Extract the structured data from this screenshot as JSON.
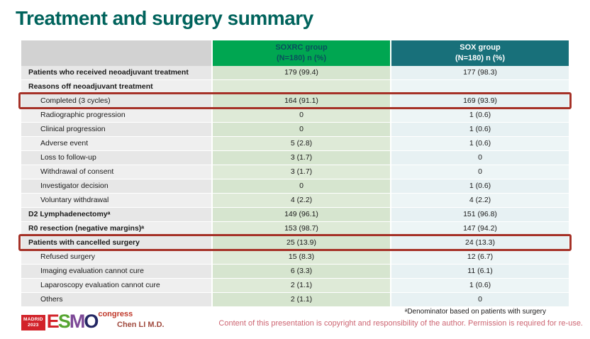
{
  "slide": {
    "title": "Treatment and surgery summary"
  },
  "table": {
    "header": {
      "soxrc": {
        "line1": "SOXRC group",
        "line2": "(N=180)  n (%)"
      },
      "sox": {
        "line1": "SOX group",
        "line2": "(N=180)  n (%)"
      }
    },
    "rows": [
      {
        "label": "Patients who received neoadjuvant treatment",
        "soxrc": "179 (99.4)",
        "sox": "177 (98.3)",
        "bold": true,
        "indent": false,
        "highlight": false
      },
      {
        "label": "Reasons off neoadjuvant treatment",
        "soxrc": "",
        "sox": "",
        "bold": true,
        "indent": false,
        "highlight": false
      },
      {
        "label": "Completed (3 cycles)",
        "soxrc": "164 (91.1)",
        "sox": "169 (93.9)",
        "bold": false,
        "indent": true,
        "highlight": true
      },
      {
        "label": "Radiographic progression",
        "soxrc": "0",
        "sox": "1 (0.6)",
        "bold": false,
        "indent": true,
        "highlight": false
      },
      {
        "label": "Clinical progression",
        "soxrc": "0",
        "sox": "1 (0.6)",
        "bold": false,
        "indent": true,
        "highlight": false
      },
      {
        "label": "Adverse event",
        "soxrc": "5 (2.8)",
        "sox": "1 (0.6)",
        "bold": false,
        "indent": true,
        "highlight": false
      },
      {
        "label": "Loss to follow-up",
        "soxrc": "3 (1.7)",
        "sox": "0",
        "bold": false,
        "indent": true,
        "highlight": false
      },
      {
        "label": "Withdrawal of consent",
        "soxrc": "3 (1.7)",
        "sox": "0",
        "bold": false,
        "indent": true,
        "highlight": false
      },
      {
        "label": "Investigator decision",
        "soxrc": "0",
        "sox": "1 (0.6)",
        "bold": false,
        "indent": true,
        "highlight": false
      },
      {
        "label": "Voluntary withdrawal",
        "soxrc": "4 (2.2)",
        "sox": "4 (2.2)",
        "bold": false,
        "indent": true,
        "highlight": false
      },
      {
        "label": "D2 Lymphadenectomyᵃ",
        "soxrc": "149 (96.1)",
        "sox": "151 (96.8)",
        "bold": true,
        "indent": false,
        "highlight": false
      },
      {
        "label": "R0 resection (negative margins)ᵃ",
        "soxrc": "153 (98.7)",
        "sox": "147 (94.2)",
        "bold": true,
        "indent": false,
        "highlight": false
      },
      {
        "label": "Patients with cancelled surgery",
        "soxrc": "25 (13.9)",
        "sox": "24 (13.3)",
        "bold": true,
        "indent": false,
        "highlight": true
      },
      {
        "label": "Refused surgery",
        "soxrc": "15 (8.3)",
        "sox": "12 (6.7)",
        "bold": false,
        "indent": true,
        "highlight": false
      },
      {
        "label": "Imaging evaluation cannot cure",
        "soxrc": "6 (3.3)",
        "sox": "11 (6.1)",
        "bold": false,
        "indent": true,
        "highlight": false
      },
      {
        "label": "Laparoscopy evaluation cannot cure",
        "soxrc": "2 (1.1)",
        "sox": "1 (0.6)",
        "bold": false,
        "indent": true,
        "highlight": false
      },
      {
        "label": "Others",
        "soxrc": "2 (1.1)",
        "sox": "0",
        "bold": false,
        "indent": true,
        "highlight": false
      }
    ]
  },
  "footer": {
    "logo": {
      "madrid_line1": "MADRID",
      "madrid_line2": "2023",
      "esmo_letters": [
        "E",
        "S",
        "M",
        "O"
      ],
      "congress": "congress"
    },
    "presenter": "Chen LI M.D.",
    "footnote": "ᵃDenominator based on patients with surgery",
    "copyright": "Content of this presentation is copyright and responsibility of the author.  Permission is required for re-use."
  },
  "colors": {
    "title_teal": "#00635c",
    "soxrc_header_green": "#00a651",
    "sox_header_teal": "#18707a",
    "highlight_red": "#a53127",
    "esmo_red": "#d2232a",
    "copyright_rose": "#cd6572"
  }
}
